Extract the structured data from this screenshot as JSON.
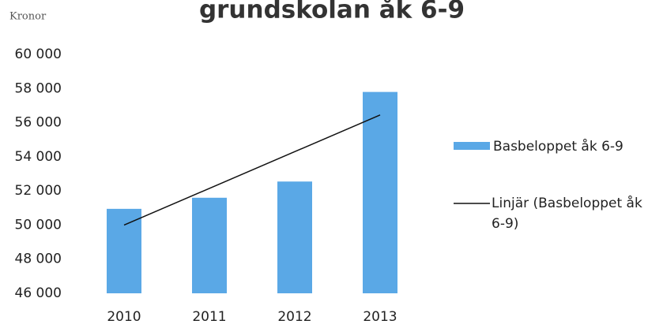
{
  "chart_data": {
    "type": "bar",
    "title": "grundskolan åk 6-9",
    "y_label": "Kronor",
    "categories": [
      "2010",
      "2011",
      "2012",
      "2013"
    ],
    "series": [
      {
        "name": "Basbeloppet åk 6-9",
        "color": "#5aa8e6",
        "values": [
          50950,
          51600,
          52550,
          57800
        ]
      },
      {
        "name": "Linjär (Basbeloppet åk 6-9)",
        "color": "#111111",
        "type": "line",
        "values": [
          50000,
          52150,
          54300,
          56450
        ]
      }
    ],
    "ylim": [
      46000,
      60000
    ],
    "yticks": [
      {
        "value": 46000,
        "label": "46 000"
      },
      {
        "value": 48000,
        "label": "48 000"
      },
      {
        "value": 50000,
        "label": "50 000"
      },
      {
        "value": 52000,
        "label": "52 000"
      },
      {
        "value": 54000,
        "label": "54 000"
      },
      {
        "value": 56000,
        "label": "56 000"
      },
      {
        "value": 58000,
        "label": "58 000"
      },
      {
        "value": 60000,
        "label": "60 000"
      }
    ],
    "grid": false,
    "legend": "right"
  }
}
